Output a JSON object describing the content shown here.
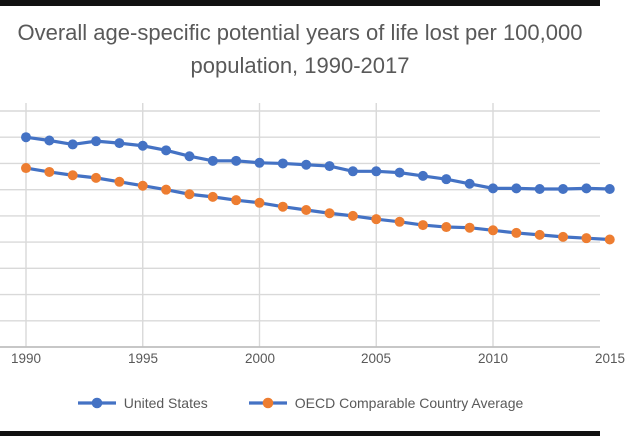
{
  "title": {
    "line1": "Overall age-specific potential years of life lost per 100,000",
    "line2": "population, 1990-2017"
  },
  "colors": {
    "us_blue": "#4472C4",
    "oecd_orange": "#ED7D31",
    "gridline": "#D9D9D9",
    "axis_line": "#BFBFBF",
    "text_gray": "#595959",
    "frame_bar": "#111111"
  },
  "chart_data": {
    "type": "line",
    "title": "Overall age-specific potential years of life lost per 100,000 population, 1990-2017",
    "title_lines": [
      "Overall age-specific potential years of life lost per 100,000",
      "population, 1990-2017"
    ],
    "xlabel": "",
    "ylabel": "",
    "grid": true,
    "legend_position": "bottom",
    "x": [
      1990,
      1991,
      1992,
      1993,
      1994,
      1995,
      1996,
      1997,
      1998,
      1999,
      2000,
      2001,
      2002,
      2003,
      2004,
      2005,
      2006,
      2007,
      2008,
      2009,
      2010,
      2011,
      2012,
      2013,
      2014,
      2015
    ],
    "x_tick_years": [
      1990,
      1995,
      2000,
      2005,
      2010,
      2015
    ],
    "x_tick_labels": [
      "1990",
      "1995",
      "2000",
      "2005",
      "2010",
      "2015"
    ],
    "y_axis": {
      "min": 0,
      "max": 18600,
      "gridline_max": 18000,
      "step": 2000,
      "labels_visible": false
    },
    "series": [
      {
        "name": "United States",
        "line_color": "#4472C4",
        "marker_color": "#4472C4",
        "values": [
          16000,
          15750,
          15450,
          15700,
          15550,
          15350,
          15000,
          14550,
          14200,
          14200,
          14050,
          14000,
          13900,
          13800,
          13400,
          13400,
          13300,
          13050,
          12800,
          12450,
          12100,
          12100,
          12050,
          12050,
          12100,
          12050
        ]
      },
      {
        "name": "OECD Comparable Country Average",
        "line_color": "#4472C4",
        "marker_color": "#ED7D31",
        "values": [
          13650,
          13350,
          13100,
          12900,
          12600,
          12300,
          12000,
          11650,
          11450,
          11200,
          11000,
          10700,
          10450,
          10200,
          10000,
          9750,
          9550,
          9300,
          9150,
          9100,
          8900,
          8700,
          8550,
          8400,
          8300,
          8200
        ]
      }
    ]
  }
}
